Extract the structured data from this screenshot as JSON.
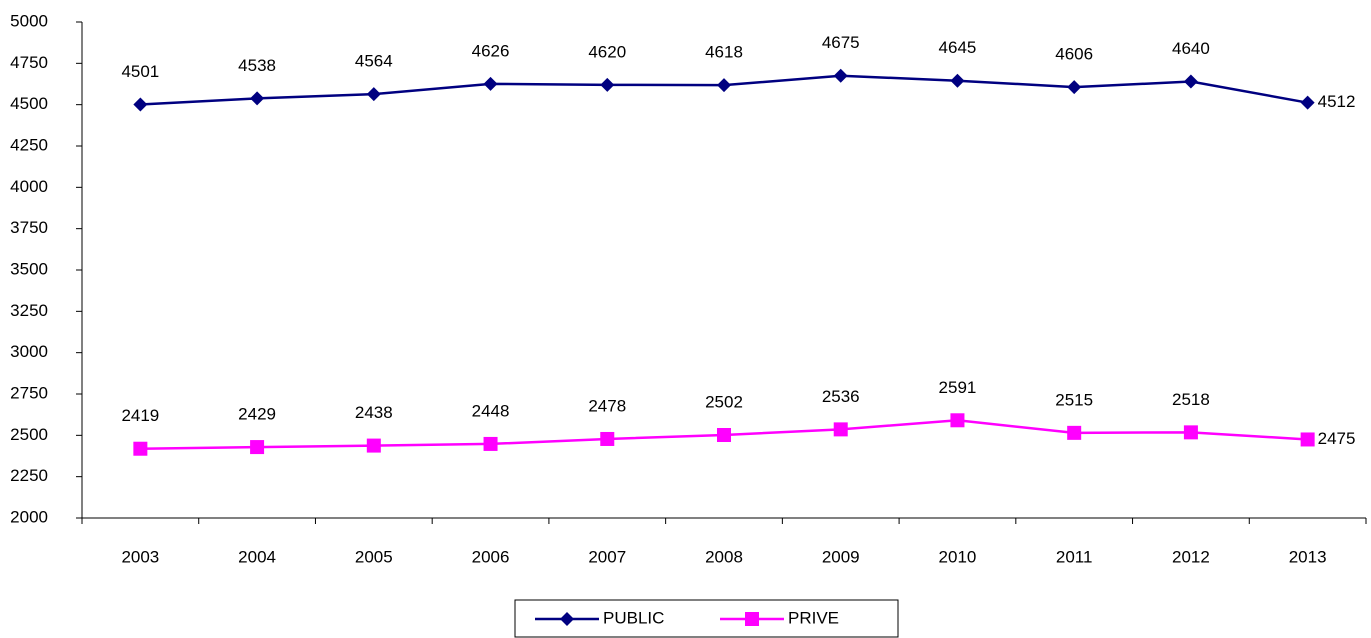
{
  "chart_data": {
    "type": "line",
    "categories": [
      "2003",
      "2004",
      "2005",
      "2006",
      "2007",
      "2008",
      "2009",
      "2010",
      "2011",
      "2012",
      "2013"
    ],
    "series": [
      {
        "name": "PUBLIC",
        "color": "#000080",
        "marker": "diamond",
        "values": [
          4501,
          4538,
          4564,
          4626,
          4620,
          4618,
          4675,
          4645,
          4606,
          4640,
          4512
        ]
      },
      {
        "name": "PRIVE",
        "color": "#ff00ff",
        "marker": "square",
        "values": [
          2419,
          2429,
          2438,
          2448,
          2478,
          2502,
          2536,
          2591,
          2515,
          2518,
          2475
        ]
      }
    ],
    "ylim": [
      2000,
      5000
    ],
    "yticks": [
      2000,
      2250,
      2500,
      2750,
      3000,
      3250,
      3500,
      3750,
      4000,
      4250,
      4500,
      4750,
      5000
    ],
    "grid": false,
    "legend": "bottom"
  }
}
